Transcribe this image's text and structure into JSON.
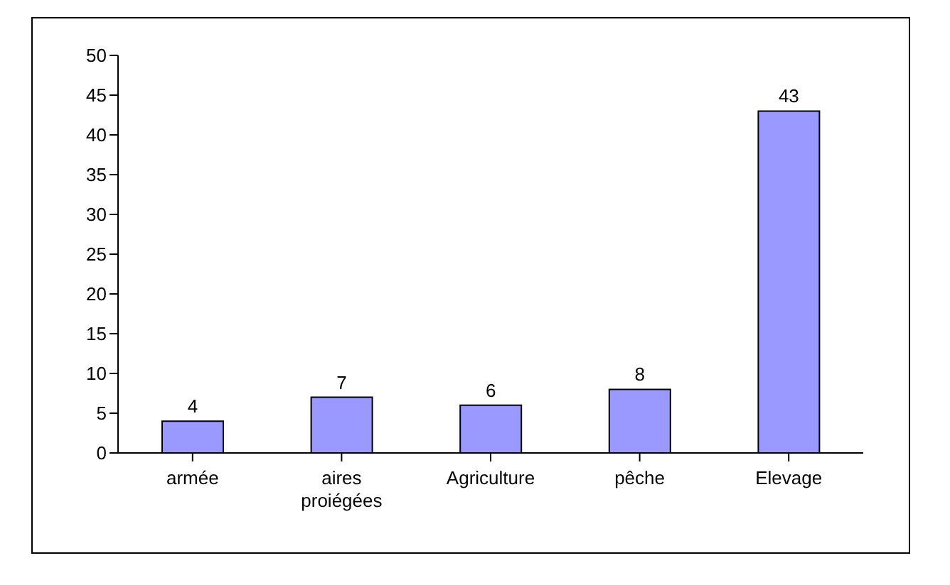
{
  "chart_data": {
    "type": "bar",
    "categories": [
      "armée",
      "aires proiégées",
      "Agriculture",
      "pêche",
      "Elevage"
    ],
    "values": [
      4,
      7,
      6,
      8,
      43
    ],
    "color": "#9999ff",
    "ylim": [
      0,
      50
    ],
    "yticks": [
      0,
      5,
      10,
      15,
      20,
      25,
      30,
      35,
      40,
      45,
      50
    ],
    "data_labels": true,
    "grid": false,
    "legend": false
  }
}
